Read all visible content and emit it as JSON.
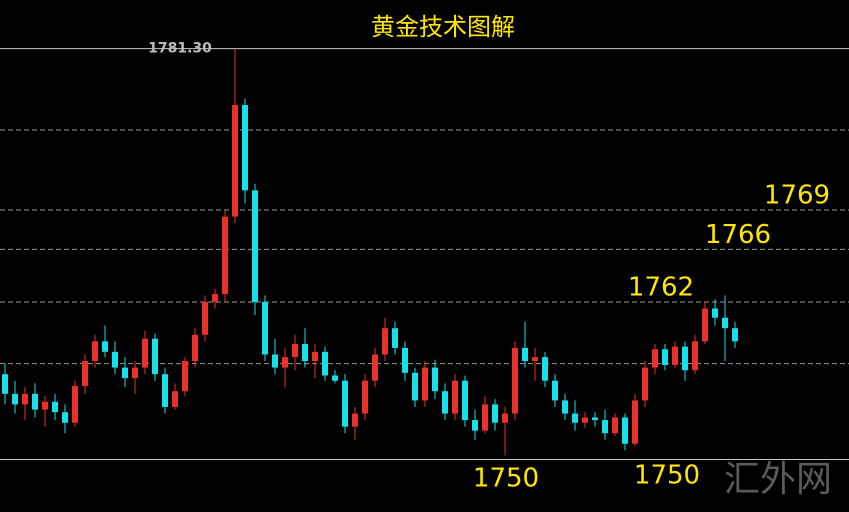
{
  "chart_data": {
    "type": "candlestick",
    "title": "黄金技术图解",
    "watermark": "汇外网",
    "ylim": [
      1746,
      1785
    ],
    "up_color": "#e8312a",
    "down_color": "#16e0ea",
    "label_color": "#ffe600",
    "hlines": [
      {
        "value": 1781.3,
        "label": "1781.30",
        "style": "solid"
      },
      {
        "value": 1775.1,
        "style": "dashed"
      },
      {
        "value": 1769,
        "style": "dashed"
      },
      {
        "value": 1766,
        "style": "dashed"
      },
      {
        "value": 1762,
        "style": "dashed"
      },
      {
        "value": 1757.3,
        "style": "dashed"
      },
      {
        "value": 1750,
        "style": "solid"
      }
    ],
    "level_labels": [
      1769,
      1766,
      1762
    ],
    "low_labels": [
      1750,
      1750
    ],
    "open": [
      1756.5,
      1755.0,
      1754.2,
      1755.0,
      1753.8,
      1754.4,
      1753.6,
      1752.8,
      1755.6,
      1757.5,
      1759.0,
      1758.2,
      1757.0,
      1756.2,
      1757.0,
      1759.2,
      1756.5,
      1754.0,
      1755.2,
      1757.5,
      1759.5,
      1762.0,
      1762.6,
      1768.5,
      1777.0,
      1770.5,
      1762.0,
      1758.0,
      1757.0,
      1757.8,
      1758.8,
      1757.5,
      1758.2,
      1756.4,
      1756.0,
      1752.5,
      1753.5,
      1756.0,
      1758.0,
      1760.0,
      1758.5,
      1756.6,
      1754.5,
      1757.0,
      1755.2,
      1753.5,
      1756.0,
      1753.0,
      1752.2,
      1754.2,
      1752.8,
      1753.5,
      1758.5,
      1757.5,
      1757.8,
      1756.0,
      1754.5,
      1753.5,
      1752.8,
      1753.2,
      1753.0,
      1752.0,
      1753.2,
      1751.2,
      1754.5,
      1757.0,
      1758.4,
      1757.2,
      1758.6,
      1756.8,
      1759.0,
      1761.5,
      1760.8,
      1760.0
    ],
    "high": [
      1757.3,
      1756.0,
      1755.5,
      1755.8,
      1754.8,
      1755.0,
      1754.2,
      1756.0,
      1758.0,
      1759.5,
      1760.2,
      1759.0,
      1757.8,
      1757.5,
      1759.8,
      1759.6,
      1757.0,
      1755.8,
      1757.8,
      1760.0,
      1762.5,
      1763.0,
      1769.0,
      1781.3,
      1777.5,
      1771.0,
      1762.5,
      1759.2,
      1758.5,
      1759.5,
      1760.0,
      1758.8,
      1758.6,
      1756.8,
      1756.5,
      1754.0,
      1756.5,
      1758.5,
      1760.8,
      1760.5,
      1759.0,
      1757.0,
      1757.5,
      1757.6,
      1755.8,
      1756.5,
      1756.4,
      1753.8,
      1754.8,
      1754.6,
      1754.0,
      1759.0,
      1760.5,
      1758.5,
      1758.2,
      1756.5,
      1755.0,
      1754.5,
      1753.6,
      1753.6,
      1753.8,
      1753.5,
      1753.5,
      1755.0,
      1757.5,
      1758.8,
      1758.8,
      1759.0,
      1759.0,
      1759.5,
      1762.0,
      1762.2,
      1762.5,
      1760.5
    ],
    "low": [
      1754.2,
      1753.5,
      1753.0,
      1753.2,
      1752.5,
      1753.0,
      1752.0,
      1752.5,
      1755.0,
      1757.0,
      1757.8,
      1756.5,
      1755.5,
      1755.0,
      1756.5,
      1756.0,
      1753.5,
      1753.8,
      1754.8,
      1757.0,
      1759.0,
      1761.5,
      1762.0,
      1768.0,
      1769.5,
      1761.0,
      1757.5,
      1756.5,
      1755.5,
      1756.8,
      1757.0,
      1756.2,
      1756.0,
      1755.8,
      1752.0,
      1751.5,
      1753.0,
      1755.5,
      1757.5,
      1758.0,
      1756.0,
      1754.0,
      1754.0,
      1754.6,
      1753.0,
      1753.0,
      1752.5,
      1751.5,
      1752.0,
      1752.2,
      1750.3,
      1753.0,
      1757.0,
      1756.0,
      1755.5,
      1754.0,
      1753.0,
      1752.2,
      1752.4,
      1752.5,
      1751.5,
      1751.8,
      1750.7,
      1751.0,
      1754.0,
      1756.5,
      1756.8,
      1757.0,
      1756.0,
      1756.5,
      1758.8,
      1760.2,
      1757.5,
      1758.5
    ],
    "close": [
      1755.0,
      1754.2,
      1755.0,
      1753.8,
      1754.4,
      1753.6,
      1752.8,
      1755.6,
      1757.5,
      1759.0,
      1758.2,
      1757.0,
      1756.2,
      1757.0,
      1759.2,
      1756.5,
      1754.0,
      1755.2,
      1757.5,
      1759.5,
      1762.0,
      1762.6,
      1768.5,
      1777.0,
      1770.5,
      1762.0,
      1758.0,
      1757.0,
      1757.8,
      1758.8,
      1757.5,
      1758.2,
      1756.4,
      1756.0,
      1752.5,
      1753.5,
      1756.0,
      1758.0,
      1760.0,
      1758.5,
      1756.6,
      1754.5,
      1757.0,
      1755.2,
      1753.5,
      1756.0,
      1753.0,
      1752.2,
      1754.2,
      1752.8,
      1753.5,
      1758.5,
      1757.5,
      1757.8,
      1756.0,
      1754.5,
      1753.5,
      1752.8,
      1753.2,
      1753.0,
      1752.0,
      1753.2,
      1751.2,
      1754.5,
      1757.0,
      1758.4,
      1757.2,
      1758.6,
      1756.8,
      1759.0,
      1761.5,
      1760.8,
      1760.0,
      1759.0
    ]
  }
}
